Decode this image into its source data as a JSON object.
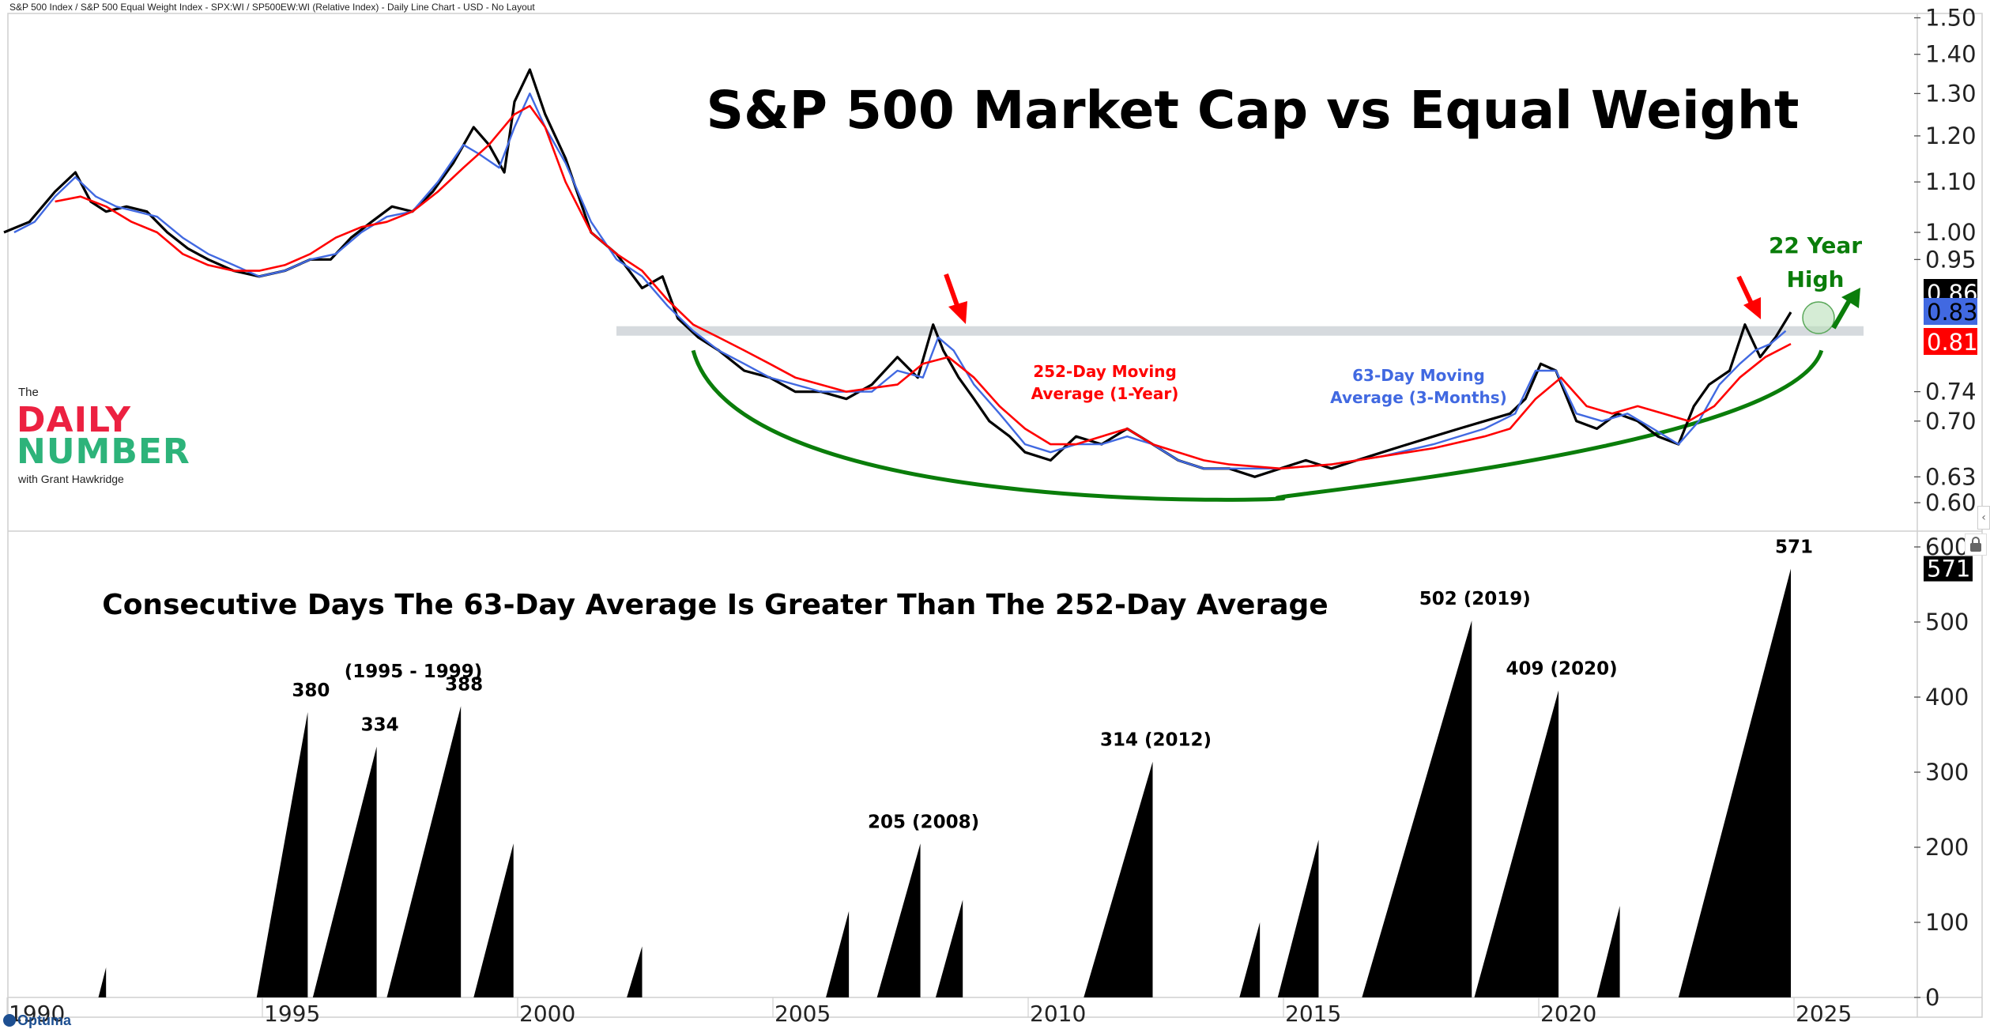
{
  "header": {
    "subtitle": "S&P 500 Index / S&P 500 Equal Weight Index - SPX:WI / SP500EW:WI (Relative Index) - Daily Line Chart - USD - No Layout"
  },
  "logo": {
    "the": "The",
    "daily": "DAILY",
    "number": "NUMBER",
    "with": "with Grant Hawkridge"
  },
  "brand": "Optuma",
  "colors": {
    "price": "#000000",
    "ma63": "#4169e1",
    "ma252": "#ff0000",
    "trend_arc": "#0a7d0a",
    "resistance_band": "#d6dade",
    "highlight_circle": "#b9dfb9",
    "logo_red": "#ec2141",
    "logo_green": "#2db37a"
  },
  "chart_data": [
    {
      "type": "line",
      "title": "S&P 500 Market Cap vs Equal Weight",
      "xlabel": "",
      "ylabel": "",
      "y_scale": "log",
      "ylim": [
        0.57,
        1.5
      ],
      "xlim": [
        1990.0,
        2027.0
      ],
      "yticks": [
        "1.50",
        "1.40",
        "1.30",
        "1.20",
        "1.10",
        "1.00",
        "0.95",
        "0.74",
        "0.70",
        "0.63",
        "0.60"
      ],
      "ytick_values": [
        1.5,
        1.4,
        1.3,
        1.2,
        1.1,
        1.0,
        0.95,
        0.74,
        0.7,
        0.63,
        0.6
      ],
      "last_values": [
        {
          "name": "Relative Index",
          "value": "0.86",
          "color": "#000000"
        },
        {
          "name": "63-Day Moving Average",
          "value": "0.83",
          "color": "#4169e1"
        },
        {
          "name": "252-Day Moving Average",
          "value": "0.81",
          "color": "#ff0000"
        }
      ],
      "series": [
        {
          "name": "Relative Index",
          "x": [
            1990.0,
            1990.5,
            1991.0,
            1991.4,
            1991.7,
            1992.0,
            1992.4,
            1992.8,
            1993.2,
            1993.6,
            1994.0,
            1994.5,
            1995.0,
            1995.5,
            1996.0,
            1996.4,
            1996.8,
            1997.2,
            1997.6,
            1998.0,
            1998.4,
            1998.8,
            1999.2,
            1999.5,
            1999.8,
            2000.0,
            2000.3,
            2000.6,
            2001.0,
            2001.5,
            2002.0,
            2002.5,
            2002.9,
            2003.2,
            2003.6,
            2004.0,
            2004.5,
            2005.0,
            2005.5,
            2006.0,
            2006.5,
            2007.0,
            2007.5,
            2007.9,
            2008.2,
            2008.4,
            2008.7,
            2009.0,
            2009.3,
            2009.7,
            2010.0,
            2010.5,
            2011.0,
            2011.5,
            2012.0,
            2012.5,
            2013.0,
            2013.5,
            2014.0,
            2014.5,
            2015.0,
            2015.5,
            2016.0,
            2016.5,
            2017.0,
            2017.5,
            2018.0,
            2018.5,
            2019.0,
            2019.5,
            2019.8,
            2020.1,
            2020.4,
            2020.8,
            2021.2,
            2021.6,
            2022.0,
            2022.4,
            2022.8,
            2023.1,
            2023.4,
            2023.8,
            2024.1,
            2024.4,
            2024.7,
            2025.0
          ],
          "y": [
            1.0,
            1.02,
            1.08,
            1.12,
            1.06,
            1.04,
            1.05,
            1.04,
            1.0,
            0.97,
            0.95,
            0.93,
            0.92,
            0.93,
            0.95,
            0.95,
            0.99,
            1.02,
            1.05,
            1.04,
            1.08,
            1.14,
            1.22,
            1.18,
            1.12,
            1.28,
            1.36,
            1.25,
            1.15,
            1.0,
            0.96,
            0.9,
            0.92,
            0.85,
            0.82,
            0.8,
            0.77,
            0.76,
            0.74,
            0.74,
            0.73,
            0.75,
            0.79,
            0.76,
            0.84,
            0.8,
            0.76,
            0.73,
            0.7,
            0.68,
            0.66,
            0.65,
            0.68,
            0.67,
            0.69,
            0.67,
            0.65,
            0.64,
            0.64,
            0.63,
            0.64,
            0.65,
            0.64,
            0.65,
            0.66,
            0.67,
            0.68,
            0.69,
            0.7,
            0.71,
            0.73,
            0.78,
            0.77,
            0.7,
            0.69,
            0.71,
            0.7,
            0.68,
            0.67,
            0.72,
            0.75,
            0.77,
            0.84,
            0.79,
            0.82,
            0.86
          ]
        },
        {
          "name": "63-Day Moving Average (3-Months)",
          "x": [
            1990.2,
            1990.6,
            1991.0,
            1991.4,
            1991.8,
            1992.2,
            1992.6,
            1993.0,
            1993.5,
            1994.0,
            1994.5,
            1995.0,
            1995.5,
            1996.0,
            1996.5,
            1997.0,
            1997.5,
            1998.0,
            1998.5,
            1999.0,
            1999.3,
            1999.7,
            2000.0,
            2000.3,
            2000.6,
            2001.0,
            2001.5,
            2002.0,
            2002.5,
            2003.0,
            2003.5,
            2004.0,
            2004.5,
            2005.0,
            2005.5,
            2006.0,
            2006.5,
            2007.0,
            2007.5,
            2008.0,
            2008.3,
            2008.6,
            2009.0,
            2009.5,
            2010.0,
            2010.5,
            2011.0,
            2011.5,
            2012.0,
            2012.5,
            2013.0,
            2013.5,
            2014.0,
            2015.0,
            2016.0,
            2017.0,
            2018.0,
            2019.0,
            2019.6,
            2020.0,
            2020.4,
            2020.8,
            2021.3,
            2021.8,
            2022.3,
            2022.8,
            2023.2,
            2023.6,
            2024.0,
            2024.3,
            2024.6,
            2024.9
          ],
          "y": [
            1.0,
            1.02,
            1.07,
            1.11,
            1.07,
            1.05,
            1.04,
            1.03,
            0.99,
            0.96,
            0.94,
            0.92,
            0.93,
            0.95,
            0.96,
            1.0,
            1.03,
            1.04,
            1.1,
            1.18,
            1.16,
            1.13,
            1.22,
            1.3,
            1.22,
            1.14,
            1.02,
            0.95,
            0.92,
            0.87,
            0.83,
            0.8,
            0.78,
            0.76,
            0.75,
            0.74,
            0.74,
            0.74,
            0.77,
            0.76,
            0.82,
            0.8,
            0.75,
            0.71,
            0.67,
            0.66,
            0.67,
            0.67,
            0.68,
            0.67,
            0.65,
            0.64,
            0.64,
            0.64,
            0.645,
            0.655,
            0.67,
            0.69,
            0.71,
            0.77,
            0.77,
            0.71,
            0.7,
            0.71,
            0.69,
            0.67,
            0.7,
            0.75,
            0.78,
            0.8,
            0.81,
            0.83
          ]
        },
        {
          "name": "252-Day Moving Average (1-Year)",
          "x": [
            1991.0,
            1991.5,
            1992.0,
            1992.5,
            1993.0,
            1993.5,
            1994.0,
            1994.5,
            1995.0,
            1995.5,
            1996.0,
            1996.5,
            1997.0,
            1997.5,
            1998.0,
            1998.5,
            1999.0,
            1999.5,
            2000.0,
            2000.3,
            2000.6,
            2001.0,
            2001.5,
            2002.0,
            2002.5,
            2003.0,
            2003.5,
            2004.0,
            2004.5,
            2005.0,
            2005.5,
            2006.0,
            2006.5,
            2007.0,
            2007.5,
            2008.0,
            2008.5,
            2009.0,
            2009.5,
            2010.0,
            2010.5,
            2011.0,
            2011.5,
            2012.0,
            2012.5,
            2013.0,
            2013.5,
            2014.0,
            2015.0,
            2016.0,
            2017.0,
            2018.0,
            2019.0,
            2019.5,
            2020.0,
            2020.5,
            2021.0,
            2021.5,
            2022.0,
            2022.5,
            2023.0,
            2023.5,
            2024.0,
            2024.5,
            2025.0
          ],
          "y": [
            1.06,
            1.07,
            1.05,
            1.02,
            1.0,
            0.96,
            0.94,
            0.93,
            0.93,
            0.94,
            0.96,
            0.99,
            1.01,
            1.02,
            1.04,
            1.08,
            1.13,
            1.18,
            1.25,
            1.27,
            1.22,
            1.1,
            1.0,
            0.96,
            0.93,
            0.88,
            0.84,
            0.82,
            0.8,
            0.78,
            0.76,
            0.75,
            0.74,
            0.745,
            0.75,
            0.78,
            0.79,
            0.76,
            0.72,
            0.69,
            0.67,
            0.67,
            0.68,
            0.69,
            0.67,
            0.66,
            0.65,
            0.645,
            0.64,
            0.645,
            0.655,
            0.665,
            0.68,
            0.69,
            0.73,
            0.76,
            0.72,
            0.71,
            0.72,
            0.71,
            0.7,
            0.72,
            0.76,
            0.79,
            0.81
          ]
        }
      ],
      "annotations": {
        "ma252_label_line1": "252-Day Moving",
        "ma252_label_line2": "Average (1-Year)",
        "ma63_label_line1": "63-Day Moving",
        "ma63_label_line2": "Average (3-Months)",
        "high_label_line1": "22 Year",
        "high_label_line2": "High",
        "resistance_level": 0.83,
        "arrow_dates": [
          2008.3,
          2023.9
        ]
      }
    },
    {
      "type": "area",
      "title": "Consecutive Days The 63-Day Average Is Greater Than The 252-Day Average",
      "xlabel": "",
      "ylabel": "",
      "ylim": [
        0,
        600
      ],
      "yticks": [
        "600",
        "500",
        "400",
        "300",
        "200",
        "100",
        "0"
      ],
      "ytick_values": [
        600,
        500,
        400,
        300,
        200,
        100,
        0
      ],
      "xticks": [
        "1990",
        "1995",
        "2000",
        "2005",
        "2010",
        "2015",
        "2020",
        "2025"
      ],
      "xtick_values": [
        1990,
        1995,
        2000,
        2005,
        2010,
        2015,
        2020,
        2025
      ],
      "last_value": "571",
      "runs": [
        {
          "start": 1991.85,
          "end": 1992.0,
          "peak": 40
        },
        {
          "start": 1994.95,
          "end": 1995.95,
          "peak": 380,
          "label": "380"
        },
        {
          "start": 1996.05,
          "end": 1997.3,
          "peak": 334,
          "label": "334"
        },
        {
          "start": 1997.5,
          "end": 1998.95,
          "peak": 388,
          "label": "388"
        },
        {
          "start": 1999.2,
          "end": 1999.98,
          "peak": 205
        },
        {
          "start": 2002.2,
          "end": 2002.5,
          "peak": 68
        },
        {
          "start": 2006.1,
          "end": 2006.55,
          "peak": 115
        },
        {
          "start": 2007.1,
          "end": 2007.95,
          "peak": 205,
          "label": "205 (2008)"
        },
        {
          "start": 2008.25,
          "end": 2008.78,
          "peak": 130
        },
        {
          "start": 2011.15,
          "end": 2012.5,
          "peak": 314,
          "label": "314 (2012)"
        },
        {
          "start": 2014.2,
          "end": 2014.6,
          "peak": 100
        },
        {
          "start": 2014.95,
          "end": 2015.75,
          "peak": 210
        },
        {
          "start": 2016.6,
          "end": 2018.75,
          "peak": 502,
          "label": "502 (2019)"
        },
        {
          "start": 2018.8,
          "end": 2020.45,
          "peak": 409,
          "label": "409 (2020)"
        },
        {
          "start": 2021.2,
          "end": 2021.65,
          "peak": 122
        },
        {
          "start": 2022.8,
          "end": 2025.0,
          "peak": 571,
          "label": "571"
        }
      ],
      "group_label": "(1995 - 1999)"
    }
  ]
}
